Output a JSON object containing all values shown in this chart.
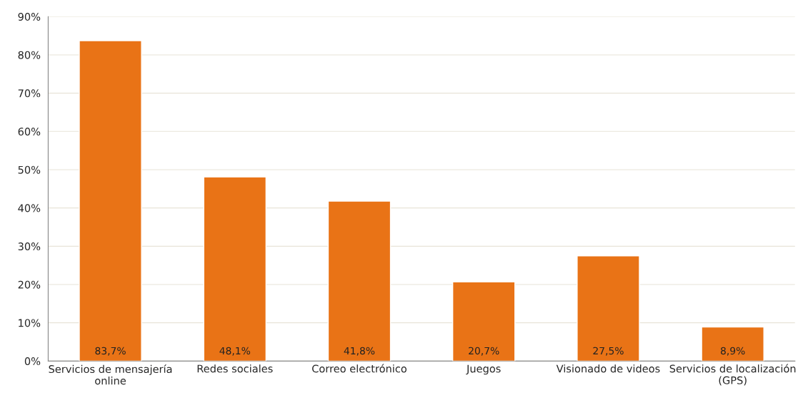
{
  "chart_data": {
    "type": "bar",
    "categories": [
      "Servicios de mensajería\nonline",
      "Redes sociales",
      "Correo electrónico",
      "Juegos",
      "Visionado de videos",
      "Servicios de localización\n(GPS)"
    ],
    "values": [
      83.7,
      48.1,
      41.8,
      20.7,
      27.5,
      8.9
    ],
    "value_labels": [
      "83,7%",
      "48,1%",
      "41,8%",
      "20,7%",
      "27,5%",
      "8,9%"
    ],
    "color": "#e97316",
    "ylim": [
      0,
      90
    ],
    "yticks": [
      {
        "value": 0,
        "label": "0%"
      },
      {
        "value": 10,
        "label": "10%"
      },
      {
        "value": 20,
        "label": "20%"
      },
      {
        "value": 30,
        "label": "30%"
      },
      {
        "value": 40,
        "label": "40%"
      },
      {
        "value": 50,
        "label": "50%"
      },
      {
        "value": 60,
        "label": "60%"
      },
      {
        "value": 70,
        "label": "70%"
      },
      {
        "value": 80,
        "label": "80%"
      },
      {
        "value": 90,
        "label": "90%"
      }
    ],
    "grid": "y"
  }
}
